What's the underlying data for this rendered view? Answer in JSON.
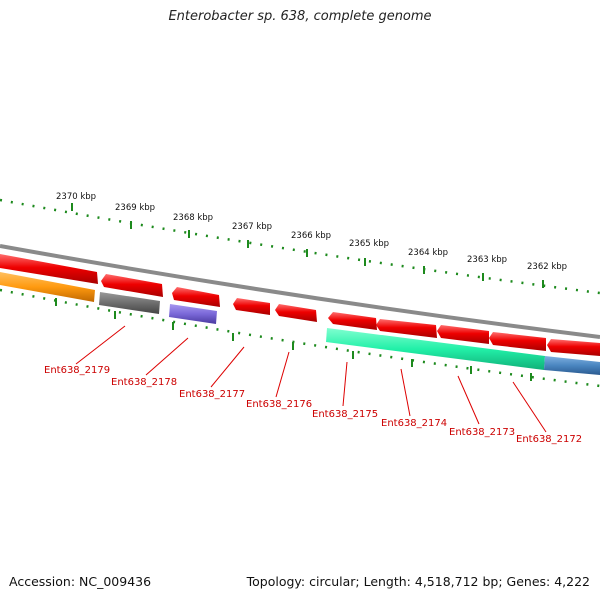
{
  "title": "Enterobacter sp. 638, complete genome",
  "accession": "Accession: NC_009436",
  "summary": "Topology: circular; Length: 4,518,712 bp; Genes: 4,222",
  "scale_labels": [
    "2370 kbp",
    "2369 kbp",
    "2368 kbp",
    "2367 kbp",
    "2366 kbp",
    "2365 kbp",
    "2364 kbp",
    "2363 kbp",
    "2362 kbp"
  ],
  "gene_labels": [
    "Ent638_2179",
    "Ent638_2178",
    "Ent638_2177",
    "Ent638_2176",
    "Ent638_2175",
    "Ent638_2174",
    "Ent638_2173",
    "Ent638_2172"
  ],
  "colors": {
    "backbone": "#8a8a8a",
    "gene_red": "#ee0000",
    "gene_orange": "#ff9a10",
    "gene_gray": "#6e6e6e",
    "gene_purple": "#7a68d8",
    "gene_green": "#22f0a8",
    "gene_blue": "#4a86c0",
    "ticks": "#1d8a1d",
    "label_red": "#cc0000"
  }
}
